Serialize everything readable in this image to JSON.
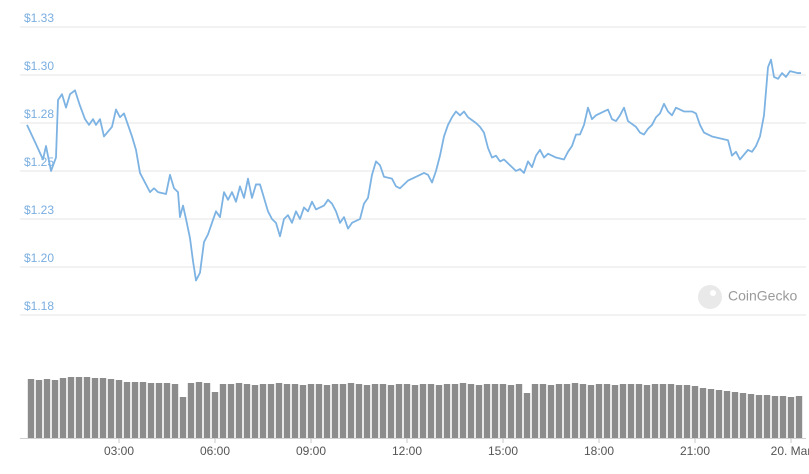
{
  "chart_data": [
    {
      "type": "line",
      "color": "#7db3e3",
      "grid": true,
      "xlim": [
        0,
        24.3
      ],
      "xticks": [
        {
          "value": 3,
          "label": "03:00"
        },
        {
          "value": 6,
          "label": "06:00"
        },
        {
          "value": 9,
          "label": "09:00"
        },
        {
          "value": 12,
          "label": "12:00"
        },
        {
          "value": 15,
          "label": "15:00"
        },
        {
          "value": 18,
          "label": "18:00"
        },
        {
          "value": 21,
          "label": "21:00"
        },
        {
          "value": 24,
          "label": "20. Mar"
        }
      ],
      "ylim": [
        1.175,
        1.325
      ],
      "yticks": [
        {
          "value": 1.325,
          "label": "$1.33"
        },
        {
          "value": 1.3,
          "label": "$1.30"
        },
        {
          "value": 1.275,
          "label": "$1.28"
        },
        {
          "value": 1.25,
          "label": "$1.25"
        },
        {
          "value": 1.225,
          "label": "$1.23"
        },
        {
          "value": 1.2,
          "label": "$1.20"
        },
        {
          "value": 1.175,
          "label": "$1.18"
        }
      ],
      "x": [
        0.125,
        0.406,
        0.625,
        0.719,
        0.875,
        1.031,
        1.094,
        1.219,
        1.344,
        1.469,
        1.625,
        1.781,
        1.938,
        2.063,
        2.188,
        2.281,
        2.406,
        2.531,
        2.781,
        2.906,
        3.031,
        3.156,
        3.281,
        3.406,
        3.531,
        3.656,
        3.844,
        3.969,
        4.094,
        4.219,
        4.469,
        4.594,
        4.719,
        4.844,
        4.906,
        5.0,
        5.094,
        5.219,
        5.313,
        5.406,
        5.531,
        5.656,
        5.781,
        5.906,
        6.031,
        6.156,
        6.281,
        6.406,
        6.531,
        6.656,
        6.781,
        6.906,
        7.031,
        7.156,
        7.281,
        7.406,
        7.531,
        7.656,
        7.781,
        7.906,
        8.031,
        8.156,
        8.281,
        8.406,
        8.531,
        8.656,
        8.781,
        8.906,
        9.031,
        9.156,
        9.406,
        9.531,
        9.656,
        9.781,
        9.906,
        10.031,
        10.156,
        10.281,
        10.531,
        10.656,
        10.781,
        10.906,
        11.031,
        11.156,
        11.281,
        11.531,
        11.656,
        11.781,
        12.031,
        12.281,
        12.531,
        12.656,
        12.781,
        12.906,
        13.031,
        13.156,
        13.281,
        13.406,
        13.531,
        13.656,
        13.781,
        13.906,
        14.156,
        14.281,
        14.406,
        14.531,
        14.656,
        14.781,
        14.906,
        15.031,
        15.281,
        15.406,
        15.531,
        15.656,
        15.781,
        15.906,
        16.031,
        16.156,
        16.281,
        16.406,
        16.656,
        16.906,
        17.031,
        17.156,
        17.281,
        17.406,
        17.531,
        17.656,
        17.781,
        17.906,
        18.156,
        18.281,
        18.406,
        18.531,
        18.656,
        18.781,
        18.906,
        19.156,
        19.281,
        19.406,
        19.531,
        19.656,
        19.781,
        19.906,
        20.031,
        20.156,
        20.281,
        20.406,
        20.656,
        20.906,
        21.031,
        21.156,
        21.281,
        21.531,
        21.781,
        22.031,
        22.156,
        22.281,
        22.406,
        22.656,
        22.781,
        22.906,
        23.031,
        23.156,
        23.281,
        23.375,
        23.469,
        23.594,
        23.719,
        23.844,
        23.969,
        24.219,
        24.313
      ],
      "values": [
        1.274,
        1.264,
        1.256,
        1.263,
        1.25,
        1.257,
        1.287,
        1.29,
        1.283,
        1.29,
        1.292,
        1.284,
        1.277,
        1.274,
        1.277,
        1.274,
        1.277,
        1.268,
        1.273,
        1.282,
        1.278,
        1.28,
        1.274,
        1.268,
        1.261,
        1.249,
        1.243,
        1.239,
        1.241,
        1.239,
        1.238,
        1.248,
        1.241,
        1.239,
        1.226,
        1.232,
        1.225,
        1.215,
        1.203,
        1.193,
        1.197,
        1.213,
        1.217,
        1.223,
        1.229,
        1.226,
        1.239,
        1.235,
        1.239,
        1.234,
        1.242,
        1.236,
        1.246,
        1.236,
        1.243,
        1.243,
        1.236,
        1.229,
        1.225,
        1.223,
        1.216,
        1.225,
        1.227,
        1.223,
        1.229,
        1.225,
        1.231,
        1.229,
        1.234,
        1.23,
        1.232,
        1.235,
        1.233,
        1.229,
        1.223,
        1.226,
        1.22,
        1.223,
        1.225,
        1.233,
        1.236,
        1.248,
        1.255,
        1.253,
        1.247,
        1.246,
        1.242,
        1.241,
        1.245,
        1.247,
        1.249,
        1.248,
        1.244,
        1.25,
        1.258,
        1.268,
        1.274,
        1.278,
        1.281,
        1.279,
        1.281,
        1.278,
        1.275,
        1.273,
        1.27,
        1.262,
        1.257,
        1.258,
        1.255,
        1.256,
        1.252,
        1.25,
        1.251,
        1.249,
        1.255,
        1.252,
        1.258,
        1.261,
        1.257,
        1.259,
        1.257,
        1.256,
        1.26,
        1.263,
        1.269,
        1.269,
        1.274,
        1.283,
        1.277,
        1.279,
        1.281,
        1.282,
        1.277,
        1.276,
        1.279,
        1.283,
        1.276,
        1.273,
        1.27,
        1.269,
        1.272,
        1.274,
        1.278,
        1.28,
        1.285,
        1.281,
        1.279,
        1.283,
        1.281,
        1.281,
        1.28,
        1.274,
        1.27,
        1.268,
        1.267,
        1.266,
        1.258,
        1.26,
        1.256,
        1.261,
        1.26,
        1.263,
        1.268,
        1.279,
        1.304,
        1.308,
        1.299,
        1.298,
        1.301,
        1.299,
        1.302,
        1.301,
        1.301
      ]
    },
    {
      "type": "bar",
      "color": "#8c8c8c",
      "ylim": [
        0,
        62
      ],
      "x": [
        0.25,
        0.5,
        0.75,
        1.0,
        1.25,
        1.5,
        1.75,
        2.0,
        2.25,
        2.5,
        2.75,
        3.0,
        3.25,
        3.5,
        3.75,
        4.0,
        4.25,
        4.5,
        4.75,
        5.0,
        5.25,
        5.5,
        5.75,
        6.0,
        6.25,
        6.5,
        6.75,
        7.0,
        7.25,
        7.5,
        7.75,
        8.0,
        8.25,
        8.5,
        8.75,
        9.0,
        9.25,
        9.5,
        9.75,
        10.0,
        10.25,
        10.5,
        10.75,
        11.0,
        11.25,
        11.5,
        11.75,
        12.0,
        12.25,
        12.5,
        12.75,
        13.0,
        13.25,
        13.5,
        13.75,
        14.0,
        14.25,
        14.5,
        14.75,
        15.0,
        15.25,
        15.5,
        15.75,
        16.0,
        16.25,
        16.5,
        16.75,
        17.0,
        17.25,
        17.5,
        17.75,
        18.0,
        18.25,
        18.5,
        18.75,
        19.0,
        19.25,
        19.5,
        19.75,
        20.0,
        20.25,
        20.5,
        20.75,
        21.0,
        21.25,
        21.5,
        21.75,
        22.0,
        22.25,
        22.5,
        22.75,
        23.0,
        23.25,
        23.5,
        23.75,
        24.0,
        24.25
      ],
      "values": [
        59,
        58,
        59,
        58,
        60,
        61,
        61,
        61,
        60,
        60,
        59,
        58,
        56,
        56,
        56,
        55,
        55,
        55,
        54,
        41,
        55,
        56,
        55,
        46,
        54,
        54,
        55,
        54,
        53,
        54,
        54,
        55,
        54,
        54,
        53,
        54,
        54,
        53,
        54,
        54,
        55,
        54,
        53,
        54,
        54,
        53,
        54,
        54,
        53,
        54,
        54,
        53,
        54,
        54,
        55,
        54,
        53,
        54,
        54,
        54,
        53,
        54,
        45,
        54,
        54,
        53,
        54,
        54,
        55,
        54,
        53,
        54,
        54,
        53,
        54,
        54,
        54,
        53,
        54,
        54,
        54,
        53,
        53,
        52,
        50,
        49,
        48,
        47,
        46,
        45,
        44,
        43,
        43,
        42,
        42,
        41,
        42
      ]
    }
  ],
  "watermark": "CoinGecko"
}
